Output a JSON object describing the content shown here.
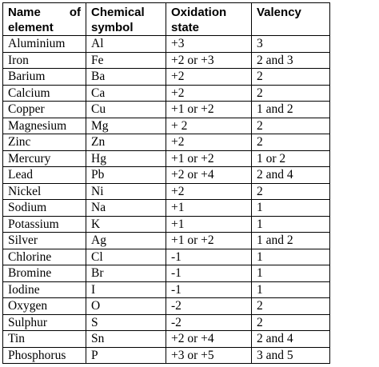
{
  "headers": {
    "name_word1": "Name",
    "name_word2": "of",
    "name_line2": "element",
    "symbol_line1": "Chemical",
    "symbol_line2": "symbol",
    "oxidation_line1": "Oxidation",
    "oxidation_line2": "state",
    "valency": "Valency"
  },
  "rows": [
    {
      "name": "Aluminium",
      "symbol": "Al",
      "oxidation": "+3",
      "valency": "3"
    },
    {
      "name": "Iron",
      "symbol": "Fe",
      "oxidation": "+2 or +3",
      "valency": "2 and 3"
    },
    {
      "name": "Barium",
      "symbol": "Ba",
      "oxidation": "+2",
      "valency": "2"
    },
    {
      "name": "Calcium",
      "symbol": "Ca",
      "oxidation": "+2",
      "valency": "2"
    },
    {
      "name": "Copper",
      "symbol": "Cu",
      "oxidation": "+1 or +2",
      "valency": "1 and 2"
    },
    {
      "name": "Magnesium",
      "symbol": "Mg",
      "oxidation": "+ 2",
      "valency": "2"
    },
    {
      "name": "Zinc",
      "symbol": "Zn",
      "oxidation": "+2",
      "valency": "2"
    },
    {
      "name": "Mercury",
      "symbol": "Hg",
      "oxidation": "+1 or +2",
      "valency": "1 or 2"
    },
    {
      "name": "Lead",
      "symbol": "Pb",
      "oxidation": "+2 or +4",
      "valency": "2 and 4"
    },
    {
      "name": "Nickel",
      "symbol": "Ni",
      "oxidation": "+2",
      "valency": "2"
    },
    {
      "name": "Sodium",
      "symbol": "Na",
      "oxidation": "+1",
      "valency": "1"
    },
    {
      "name": "Potassium",
      "symbol": "K",
      "oxidation": "+1",
      "valency": "1"
    },
    {
      "name": "Silver",
      "symbol": "Ag",
      "oxidation": "+1 or +2",
      "valency": "1 and 2"
    },
    {
      "name": "Chlorine",
      "symbol": "Cl",
      "oxidation": "-1",
      "valency": "1"
    },
    {
      "name": "Bromine",
      "symbol": "Br",
      "oxidation": "-1",
      "valency": "1"
    },
    {
      "name": "Iodine",
      "symbol": "I",
      "oxidation": "-1",
      "valency": "1"
    },
    {
      "name": "Oxygen",
      "symbol": "O",
      "oxidation": "-2",
      "valency": "2"
    },
    {
      "name": "Sulphur",
      "symbol": "S",
      "oxidation": "-2",
      "valency": "2"
    },
    {
      "name": "Tin",
      "symbol": "Sn",
      "oxidation": "+2 or +4",
      "valency": "2 and 4"
    },
    {
      "name": "Phosphorus",
      "symbol": "P",
      "oxidation": "+3 or +5",
      "valency": "3 and 5"
    }
  ]
}
